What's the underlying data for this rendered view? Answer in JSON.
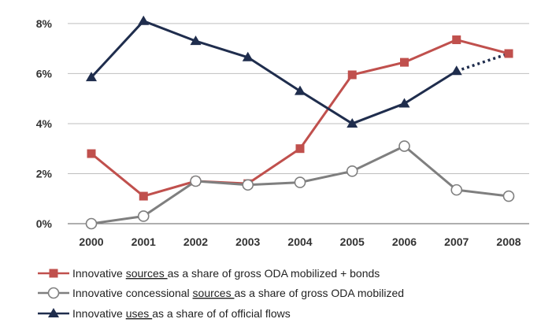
{
  "chart_data": {
    "type": "line",
    "title": "",
    "xlabel": "",
    "ylabel": "",
    "x": [
      "2000",
      "2001",
      "2002",
      "2003",
      "2004",
      "2005",
      "2006",
      "2007",
      "2008"
    ],
    "y_ticks": [
      "0%",
      "2%",
      "4%",
      "6%",
      "8%"
    ],
    "ylim": [
      0,
      8.5
    ],
    "grid": true,
    "legend_position": "bottom",
    "series": [
      {
        "key": "sources",
        "color": "#c0504d",
        "marker": "square",
        "values": [
          2.8,
          1.1,
          1.7,
          1.6,
          3.0,
          5.95,
          6.45,
          7.35,
          6.8
        ],
        "legend": {
          "before": "Innovative ",
          "underlined": "sources ",
          "after": "as a share of gross ODA mobilized + bonds"
        }
      },
      {
        "key": "concessional",
        "color": "#7f7f7f",
        "marker": "circle",
        "values": [
          0.0,
          0.3,
          1.7,
          1.55,
          1.65,
          2.1,
          3.1,
          1.35,
          1.1
        ],
        "legend": {
          "before": "Innovative concessional ",
          "underlined": "sources ",
          "after": "as a share of gross ODA mobilized"
        }
      },
      {
        "key": "uses",
        "color": "#1f2d4d",
        "marker": "triangle",
        "values": [
          5.85,
          8.1,
          7.3,
          6.65,
          5.3,
          4.0,
          4.8,
          6.1,
          6.8
        ],
        "dashed_last_segment": true,
        "legend": {
          "before": "Innovative ",
          "underlined": "uses ",
          "after": "as a share of of official flows"
        }
      }
    ]
  }
}
